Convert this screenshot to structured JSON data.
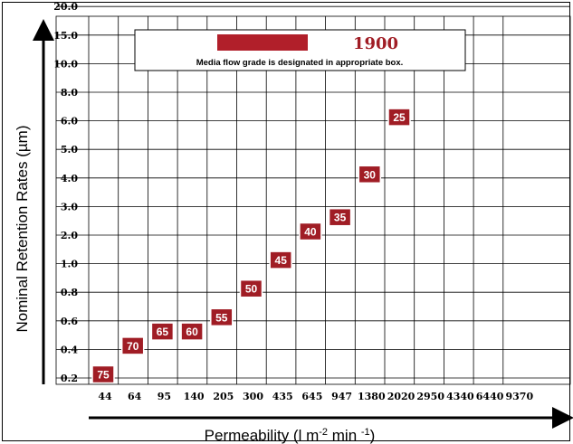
{
  "chart_data": {
    "type": "scatter",
    "title": "",
    "xlabel": "Permeability (l m",
    "xlabel_sup1": "-2",
    "xlabel_mid": " min ",
    "xlabel_sup2": "-1",
    "xlabel_end": ")",
    "ylabel": "Nominal Retention Rates (µm)",
    "x_ticks": [
      "44",
      "64",
      "95",
      "140",
      "205",
      "300",
      "435",
      "645",
      "947",
      "1380",
      "2020",
      "2950",
      "4340",
      "6440",
      "9370"
    ],
    "y_ticks": [
      "0.2",
      "0.4",
      "0.6",
      "0.8",
      "1.0",
      "2.0",
      "3.0",
      "4.0",
      "5.0",
      "6.0",
      "8.0",
      "10.0",
      "15.0",
      "20.0"
    ],
    "grid": true,
    "point_color": "#a01d25",
    "points": [
      {
        "label": "75",
        "x": 44,
        "y": 0.2
      },
      {
        "label": "70",
        "x": 64,
        "y": 0.4
      },
      {
        "label": "65",
        "x": 95,
        "y": 0.5
      },
      {
        "label": "60",
        "x": 140,
        "y": 0.5
      },
      {
        "label": "55",
        "x": 205,
        "y": 0.6
      },
      {
        "label": "50",
        "x": 300,
        "y": 0.8
      },
      {
        "label": "45",
        "x": 435,
        "y": 1.0
      },
      {
        "label": "40",
        "x": 645,
        "y": 2.0
      },
      {
        "label": "35",
        "x": 947,
        "y": 2.5
      },
      {
        "label": "30",
        "x": 1380,
        "y": 4.0
      },
      {
        "label": "25",
        "x": 2020,
        "y": 6.0
      }
    ],
    "legend": {
      "number": "1900",
      "text": "Media flow grade is designated in appropriate box.",
      "swatch_color": "#b11f2a",
      "placement": "top"
    }
  }
}
